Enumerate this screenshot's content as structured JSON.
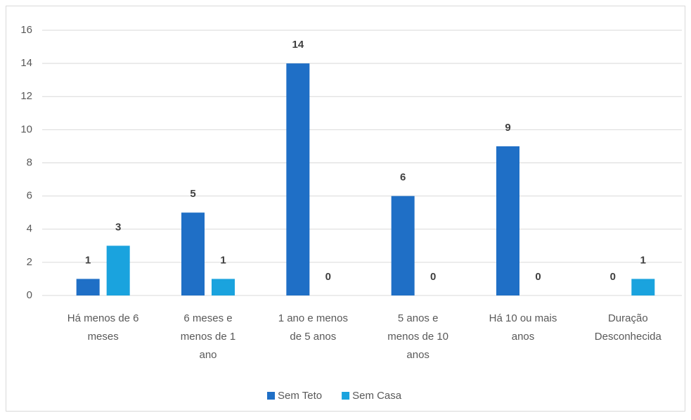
{
  "chart_data": {
    "type": "bar",
    "categories": [
      "Há menos de 6 meses",
      "6 meses e menos de 1 ano",
      "1 ano e menos de 5 anos",
      "5 anos e menos de 10 anos",
      "Há 10 ou mais anos",
      "Duração Desconhecida"
    ],
    "series": [
      {
        "name": "Sem Teto",
        "color": "#1f6fc6",
        "values": [
          1,
          5,
          14,
          6,
          9,
          0
        ]
      },
      {
        "name": "Sem Casa",
        "color": "#1aa3de",
        "values": [
          3,
          1,
          0,
          0,
          0,
          1
        ]
      }
    ],
    "ylim": [
      0,
      16
    ],
    "yticks": [
      0,
      2,
      4,
      6,
      8,
      10,
      12,
      14,
      16
    ],
    "grid": true,
    "legend": "bottom"
  }
}
